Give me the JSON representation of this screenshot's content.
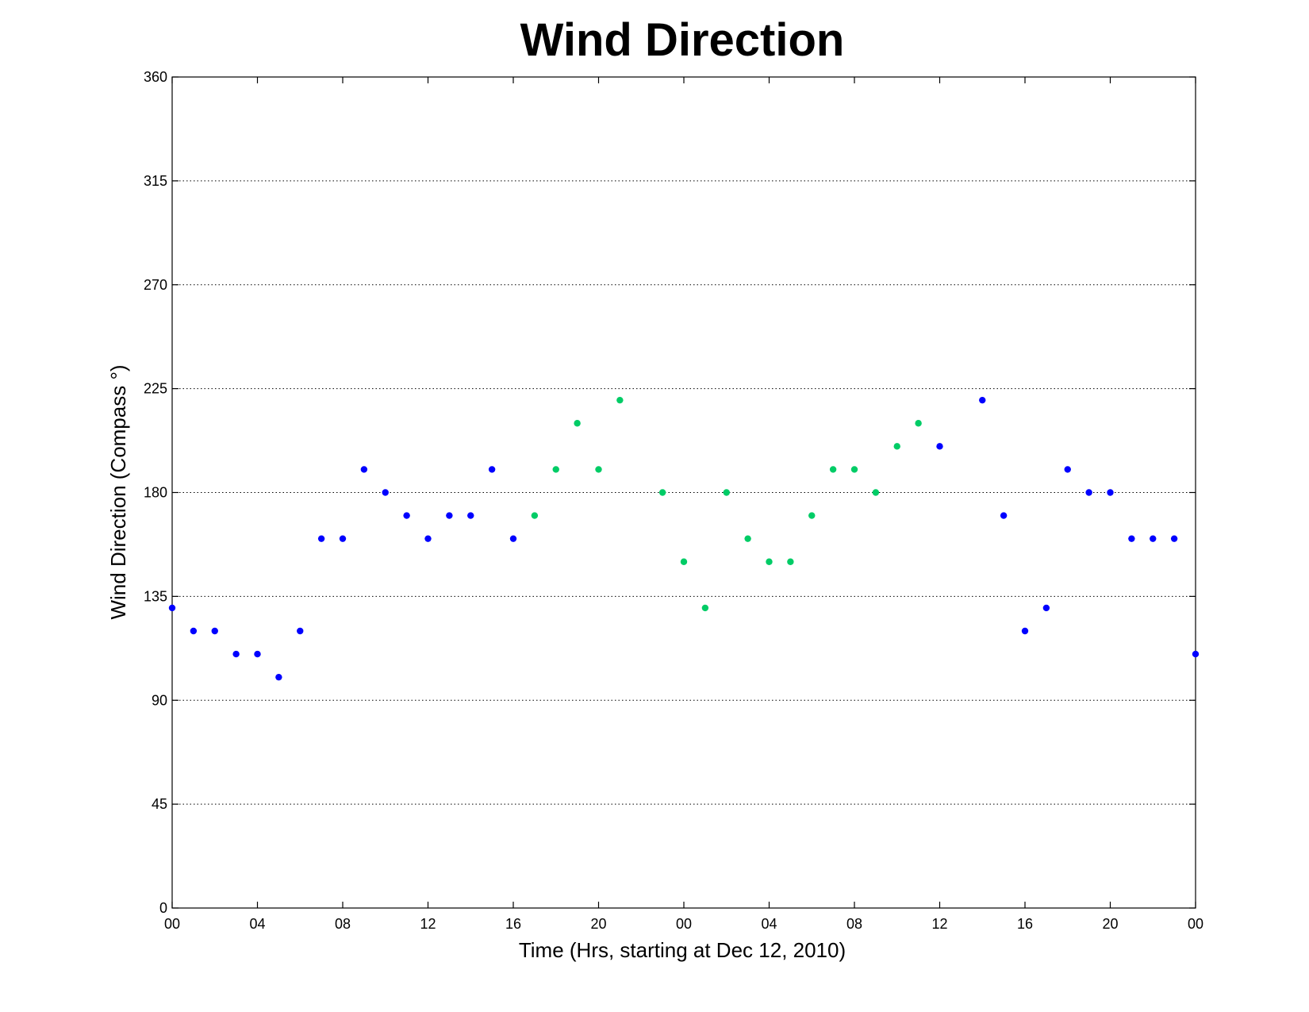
{
  "chart_data": {
    "type": "scatter",
    "title": "Wind Direction",
    "xlabel": "Time (Hrs, starting at Dec 12, 2010)",
    "ylabel": "Wind Direction (Compass  °)",
    "xlim": [
      0,
      48
    ],
    "ylim": [
      0,
      360
    ],
    "x_ticks": [
      0,
      4,
      8,
      12,
      16,
      20,
      24,
      28,
      32,
      36,
      40,
      44,
      48
    ],
    "x_tick_labels": [
      "00",
      "04",
      "08",
      "12",
      "16",
      "20",
      "00",
      "04",
      "08",
      "12",
      "16",
      "20",
      "00"
    ],
    "y_ticks": [
      0,
      45,
      90,
      135,
      180,
      225,
      270,
      315,
      360
    ],
    "y_tick_labels": [
      "0",
      "45",
      "90",
      "135",
      "180",
      "225",
      "270",
      "315",
      "360"
    ],
    "grid": "horizontal dotted",
    "series": [
      {
        "color": "#0000ff",
        "x": [
          0,
          1,
          2,
          3,
          4,
          5,
          6,
          7,
          8,
          9,
          10,
          11,
          12,
          13,
          14,
          15,
          16,
          36,
          38,
          39,
          40,
          41,
          42,
          43,
          44,
          45,
          46,
          47,
          48
        ],
        "y": [
          130,
          120,
          120,
          110,
          110,
          100,
          120,
          160,
          160,
          190,
          180,
          170,
          160,
          170,
          170,
          190,
          160,
          200,
          220,
          170,
          120,
          130,
          190,
          180,
          180,
          160,
          160,
          160,
          110
        ]
      },
      {
        "color": "#00cc66",
        "x": [
          17,
          18,
          19,
          20,
          21,
          23,
          24,
          25,
          26,
          27,
          28,
          29,
          30,
          31,
          32,
          33,
          34,
          35
        ],
        "y": [
          170,
          190,
          210,
          190,
          220,
          180,
          150,
          130,
          180,
          160,
          150,
          150,
          170,
          190,
          190,
          180,
          200,
          210
        ]
      }
    ]
  }
}
